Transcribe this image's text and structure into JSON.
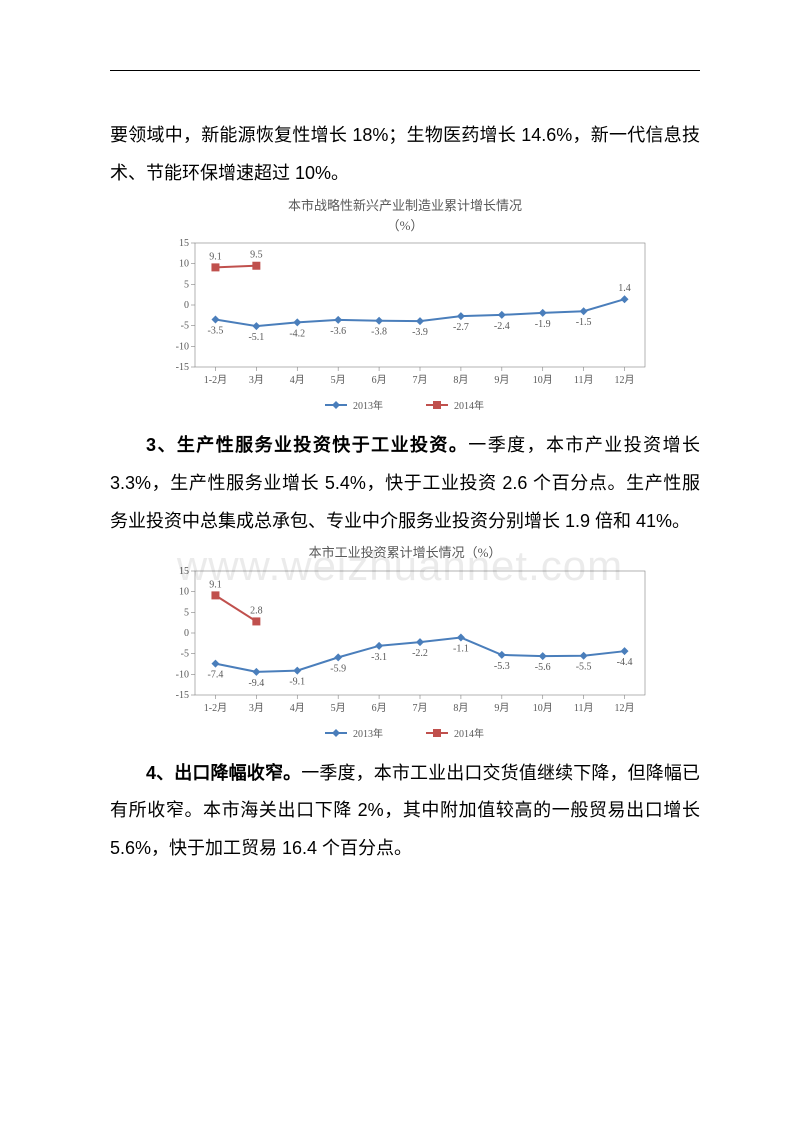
{
  "watermark": "www.weizhuannet.com",
  "para1": "要领域中，新能源恢复性增长 18%；生物医药增长 14.6%，新一代信息技术、节能环保增速超过 10%。",
  "chart1": {
    "title_l1": "本市战略性新兴产业制造业累计增长情况",
    "title_l2": "（%）",
    "categories": [
      "1-2月",
      "3月",
      "4月",
      "5月",
      "6月",
      "7月",
      "8月",
      "9月",
      "10月",
      "11月",
      "12月"
    ],
    "series": [
      {
        "name": "2013年",
        "color": "#4a7ebb",
        "marker": "diamond",
        "values": [
          -3.5,
          -5.1,
          -4.2,
          -3.6,
          -3.8,
          -3.9,
          -2.7,
          -2.4,
          -1.9,
          -1.5,
          1.4
        ]
      },
      {
        "name": "2014年",
        "color": "#c0504d",
        "marker": "square",
        "values": [
          9.1,
          9.5,
          null,
          null,
          null,
          null,
          null,
          null,
          null,
          null,
          null
        ]
      }
    ],
    "ylim": [
      -15,
      15
    ],
    "yticks": [
      -15,
      -10,
      -5,
      0,
      5,
      10,
      15
    ],
    "axis_color": "#808080",
    "tick_font": 10,
    "label_font": 10,
    "marker_size": 4,
    "line_width": 2,
    "plot_bg": "#ffffff",
    "has_border": true
  },
  "para3_bold": "3、生产性服务业投资快于工业投资。",
  "para3_rest": "一季度，本市产业投资增长 3.3%，生产性服务业增长 5.4%，快于工业投资 2.6 个百分点。生产性服务业投资中总集成总承包、专业中介服务业投资分别增长 1.9 倍和 41%。",
  "chart2": {
    "title_l1": "本市工业投资累计增长情况（%）",
    "categories": [
      "1-2月",
      "3月",
      "4月",
      "5月",
      "6月",
      "7月",
      "8月",
      "9月",
      "10月",
      "11月",
      "12月"
    ],
    "series": [
      {
        "name": "2013年",
        "color": "#4a7ebb",
        "marker": "diamond",
        "values": [
          -7.4,
          -9.4,
          -9.1,
          -5.9,
          -3.1,
          -2.2,
          -1.1,
          -5.3,
          -5.6,
          -5.5,
          -4.4
        ]
      },
      {
        "name": "2014年",
        "color": "#c0504d",
        "marker": "square",
        "values": [
          9.1,
          2.8,
          null,
          null,
          null,
          null,
          null,
          null,
          null,
          null,
          null
        ]
      }
    ],
    "ylim": [
      -15,
      15
    ],
    "yticks": [
      -15,
      -10,
      -5,
      0,
      5,
      10,
      15
    ],
    "axis_color": "#808080",
    "tick_font": 10,
    "label_font": 10,
    "marker_size": 4,
    "line_width": 2,
    "plot_bg": "#ffffff",
    "has_border": true
  },
  "para4_bold": "4、出口降幅收窄。",
  "para4_rest": "一季度，本市工业出口交货值继续下降，但降幅已有所收窄。本市海关出口下降 2%，其中附加值较高的一般贸易出口增长 5.6%，快于加工贸易 16.4 个百分点。"
}
